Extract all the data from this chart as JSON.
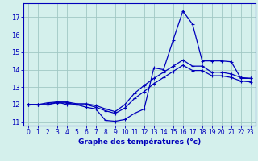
{
  "xlabel": "Graphe des températures (°c)",
  "background_color": "#d4f0ec",
  "line_color": "#0000bb",
  "grid_color": "#a0c8c4",
  "xlim_min": -0.5,
  "xlim_max": 23.5,
  "ylim_min": 10.8,
  "ylim_max": 17.8,
  "yticks": [
    11,
    12,
    13,
    14,
    15,
    16,
    17
  ],
  "xticks": [
    0,
    1,
    2,
    3,
    4,
    5,
    6,
    7,
    8,
    9,
    10,
    11,
    12,
    13,
    14,
    15,
    16,
    17,
    18,
    19,
    20,
    21,
    22,
    23
  ],
  "series1_x": [
    0,
    1,
    2,
    3,
    4,
    5,
    6,
    7,
    8,
    9,
    10,
    11,
    12,
    13,
    14,
    15,
    16,
    17,
    18,
    19,
    20,
    21,
    22,
    23
  ],
  "series1_y": [
    12.0,
    12.0,
    12.1,
    12.15,
    12.0,
    12.0,
    11.85,
    11.75,
    11.1,
    11.05,
    11.15,
    11.5,
    11.75,
    14.1,
    14.0,
    15.7,
    17.35,
    16.6,
    14.5,
    14.5,
    14.5,
    14.45,
    13.5,
    13.5
  ],
  "series2_x": [
    0,
    1,
    2,
    3,
    4,
    5,
    6,
    7,
    8,
    9,
    10,
    11,
    12,
    13,
    14,
    15,
    16,
    17,
    18,
    19,
    20,
    21,
    22,
    23
  ],
  "series2_y": [
    12.0,
    12.0,
    12.0,
    12.15,
    12.15,
    12.05,
    12.05,
    11.95,
    11.75,
    11.6,
    12.0,
    12.65,
    13.1,
    13.5,
    13.85,
    14.2,
    14.55,
    14.2,
    14.2,
    13.85,
    13.85,
    13.75,
    13.55,
    13.5
  ],
  "series3_x": [
    0,
    1,
    2,
    3,
    4,
    5,
    6,
    7,
    8,
    9,
    10,
    11,
    12,
    13,
    14,
    15,
    16,
    17,
    18,
    19,
    20,
    21,
    22,
    23
  ],
  "series3_y": [
    12.0,
    12.0,
    12.0,
    12.1,
    12.1,
    12.0,
    12.0,
    11.85,
    11.65,
    11.5,
    11.8,
    12.35,
    12.75,
    13.2,
    13.55,
    13.9,
    14.25,
    13.95,
    13.95,
    13.65,
    13.65,
    13.55,
    13.35,
    13.3
  ],
  "tick_fontsize": 5.5,
  "xlabel_fontsize": 6.5
}
